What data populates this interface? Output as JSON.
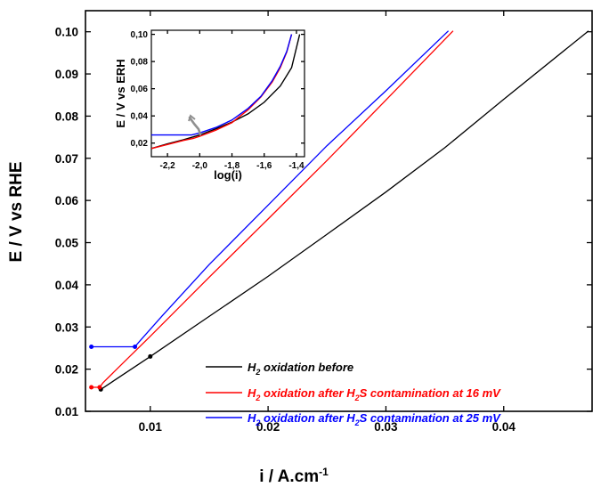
{
  "chart_data": [
    {
      "type": "line",
      "title": "",
      "xlabel": "i / A.cm",
      "xlabel_superscript": "-1",
      "ylabel": "E / V vs RHE",
      "xlim": [
        0.0045,
        0.0475
      ],
      "ylim": [
        0.01,
        0.105
      ],
      "xticks": [
        0.01,
        0.02,
        0.03,
        0.04
      ],
      "xtick_labels": [
        "0.01",
        "0.02",
        "0.03",
        "0.04"
      ],
      "yticks": [
        0.01,
        0.02,
        0.03,
        0.04,
        0.05,
        0.06,
        0.07,
        0.08,
        0.09,
        0.1
      ],
      "ytick_labels": [
        "0.01",
        "0.02",
        "0.03",
        "0.04",
        "0.05",
        "0.06",
        "0.07",
        "0.08",
        "0.09",
        "0.10"
      ],
      "grid": false,
      "legend_position": "bottom-right",
      "series": [
        {
          "legend_parts": [
            {
              "text": "H",
              "sub": false
            },
            {
              "text": "2",
              "sub": true
            },
            {
              "text": " oxidation before",
              "sub": false
            }
          ],
          "color": "#000000",
          "x": [
            0.0058,
            0.01,
            0.015,
            0.02,
            0.025,
            0.03,
            0.035,
            0.04,
            0.0472
          ],
          "y": [
            0.0152,
            0.023,
            0.0325,
            0.042,
            0.052,
            0.062,
            0.0725,
            0.084,
            0.1002
          ]
        },
        {
          "legend_parts": [
            {
              "text": "H",
              "sub": false
            },
            {
              "text": "2",
              "sub": true
            },
            {
              "text": " oxidation after H",
              "sub": false
            },
            {
              "text": "2",
              "sub": true
            },
            {
              "text": "S contamination at 16 mV",
              "sub": false
            }
          ],
          "color": "#ff0000",
          "x": [
            0.005,
            0.0057,
            0.006,
            0.008,
            0.01,
            0.015,
            0.02,
            0.025,
            0.03,
            0.0357
          ],
          "y": [
            0.0157,
            0.0157,
            0.0168,
            0.0223,
            0.0278,
            0.0418,
            0.0556,
            0.0695,
            0.0838,
            0.1002
          ]
        },
        {
          "legend_parts": [
            {
              "text": "H",
              "sub": false
            },
            {
              "text": "2",
              "sub": true
            },
            {
              "text": " oxidation after H",
              "sub": false
            },
            {
              "text": "2",
              "sub": true
            },
            {
              "text": "S  contamination at 25 mV",
              "sub": false
            }
          ],
          "color": "#0000ff",
          "x": [
            0.005,
            0.0087,
            0.009,
            0.011,
            0.015,
            0.02,
            0.025,
            0.03,
            0.0353
          ],
          "y": [
            0.0253,
            0.0253,
            0.0263,
            0.0326,
            0.0448,
            0.0589,
            0.073,
            0.086,
            0.1002
          ]
        }
      ]
    },
    {
      "type": "line",
      "title": "",
      "xlabel": "log(i)",
      "ylabel": "E / V vs ERH",
      "xlim": [
        -2.3,
        -1.35
      ],
      "ylim": [
        0.01,
        0.103
      ],
      "xticks": [
        -2.2,
        -2.0,
        -1.8,
        -1.6,
        -1.4
      ],
      "xtick_labels": [
        "-2,2",
        "-2,0",
        "-1,8",
        "-1,6",
        "-1,4"
      ],
      "yticks": [
        0.02,
        0.04,
        0.06,
        0.08,
        0.1
      ],
      "ytick_labels": [
        "0,02",
        "0,04",
        "0,06",
        "0,08",
        "0,10"
      ],
      "grid": false,
      "series": [
        {
          "color": "#000000",
          "x": [
            -2.3,
            -2.2,
            -2.1,
            -2.0,
            -1.9,
            -1.8,
            -1.7,
            -1.6,
            -1.5,
            -1.43,
            -1.38
          ],
          "y": [
            0.016,
            0.0195,
            0.0225,
            0.026,
            0.0305,
            0.0355,
            0.0415,
            0.05,
            0.062,
            0.0755,
            0.1
          ]
        },
        {
          "color": "#ff0000",
          "x": [
            -2.3,
            -2.2,
            -2.1,
            -2.04,
            -2.0,
            -1.9,
            -1.8,
            -1.7,
            -1.62,
            -1.55,
            -1.5,
            -1.46,
            -1.43
          ],
          "y": [
            0.016,
            0.019,
            0.022,
            0.0235,
            0.025,
            0.0295,
            0.035,
            0.0445,
            0.054,
            0.065,
            0.0755,
            0.087,
            0.1
          ]
        },
        {
          "color": "#0000ff",
          "x": [
            -2.3,
            -2.05,
            -2.0,
            -1.9,
            -1.8,
            -1.7,
            -1.62,
            -1.55,
            -1.5,
            -1.46,
            -1.43
          ],
          "y": [
            0.026,
            0.026,
            0.0275,
            0.0315,
            0.037,
            0.0455,
            0.0545,
            0.066,
            0.0765,
            0.0875,
            0.1
          ]
        }
      ]
    }
  ]
}
